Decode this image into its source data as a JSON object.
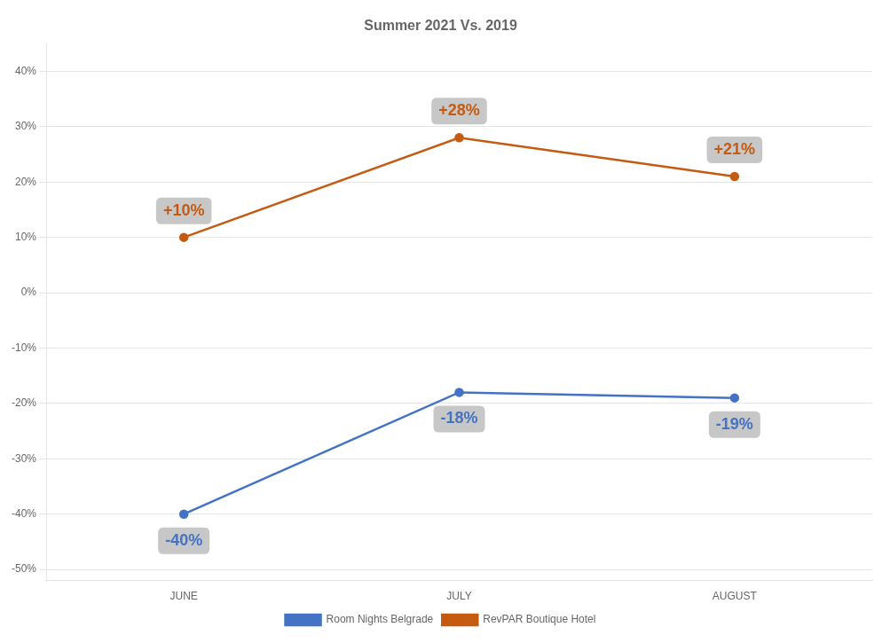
{
  "chart_data": {
    "type": "line",
    "title": "Summer 2021 Vs. 2019",
    "categories": [
      "JUNE",
      "JULY",
      "AUGUST"
    ],
    "series": [
      {
        "name": "Room Nights Belgrade",
        "color": "#4472C4",
        "values": [
          -40,
          -18,
          -19
        ],
        "value_labels": [
          "-40%",
          "-18%",
          "-19%"
        ]
      },
      {
        "name": "RevPAR Boutique Hotel",
        "color": "#C55A11",
        "values": [
          10,
          28,
          21
        ],
        "value_labels": [
          "+10%",
          "+28%",
          "+21%"
        ]
      }
    ],
    "ylim": [
      -52,
      45
    ],
    "yticks": [
      {
        "value": -50,
        "label": "-50%"
      },
      {
        "value": -40,
        "label": "-40%"
      },
      {
        "value": -30,
        "label": "-30%"
      },
      {
        "value": -20,
        "label": "-20%"
      },
      {
        "value": -10,
        "label": "-10%"
      },
      {
        "value": 0,
        "label": "0%"
      },
      {
        "value": 10,
        "label": "10%"
      },
      {
        "value": 20,
        "label": "20%"
      },
      {
        "value": 30,
        "label": "30%"
      },
      {
        "value": 40,
        "label": "40%"
      }
    ],
    "grid": true,
    "legend": "bottom",
    "data_labels": true,
    "marker": "circle"
  }
}
